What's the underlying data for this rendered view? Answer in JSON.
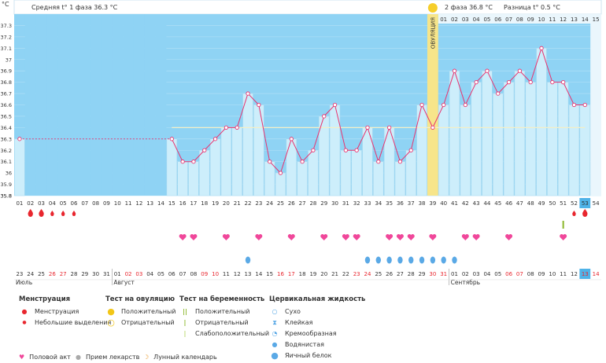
{
  "chart_data": {
    "type": "bar",
    "y_unit_label": "°C",
    "ylim": [
      35.8,
      37.4
    ],
    "yticks": [
      "37.3",
      "37.2",
      "37.1",
      "37",
      "36.9",
      "36.8",
      "36.7",
      "36.6",
      "36.5",
      "36.4",
      "36.3",
      "36.2",
      "36.1",
      "36",
      "35.9",
      "35.8"
    ],
    "header": {
      "phase1_label": "Средняя t° 1 фаза",
      "phase1_value": "36.3 °C",
      "phase2_label": "2 фаза",
      "phase2_value": "36.8 °C",
      "diff_label": "Разница t°",
      "diff_value": "0.5 °C",
      "ovulation_label": "ОВУЛЯЦИЯ"
    },
    "top_day_labels": [
      "01",
      "02",
      "03",
      "04",
      "05",
      "06",
      "07",
      "08",
      "09",
      "10",
      "11",
      "12",
      "13",
      "14",
      "15"
    ],
    "cycle_days": [
      "01",
      "02",
      "03",
      "04",
      "05",
      "06",
      "07",
      "08",
      "09",
      "10",
      "11",
      "12",
      "13",
      "14",
      "15",
      "16",
      "17",
      "18",
      "19",
      "20",
      "21",
      "22",
      "23",
      "24",
      "25",
      "26",
      "27",
      "28",
      "29",
      "30",
      "31",
      "32",
      "33",
      "34",
      "35",
      "36",
      "37",
      "38",
      "39",
      "40",
      "41",
      "42",
      "43",
      "44",
      "45",
      "46",
      "47",
      "48",
      "49",
      "50",
      "51",
      "52",
      "53",
      "54"
    ],
    "temperatures": [
      36.3,
      null,
      null,
      null,
      null,
      null,
      null,
      null,
      null,
      null,
      null,
      null,
      null,
      null,
      36.3,
      36.1,
      36.1,
      36.2,
      36.3,
      36.4,
      36.4,
      36.7,
      36.6,
      36.1,
      36.0,
      36.3,
      36.1,
      36.2,
      36.5,
      36.6,
      36.2,
      36.2,
      36.4,
      36.1,
      36.4,
      36.1,
      36.2,
      36.6,
      36.4,
      36.6,
      36.9,
      36.6,
      36.8,
      36.9,
      36.7,
      36.8,
      36.9,
      36.8,
      37.1,
      36.8,
      36.8,
      36.6,
      36.6,
      null
    ],
    "mean_line_value": 36.4,
    "phase1_avg": 36.3,
    "ovulation_day": "39",
    "today_day": "53",
    "dates": [
      "23",
      "24",
      "25",
      "26",
      "27",
      "28",
      "29",
      "30",
      "31",
      "01",
      "02",
      "03",
      "04",
      "05",
      "06",
      "07",
      "08",
      "09",
      "10",
      "11",
      "12",
      "13",
      "14",
      "15",
      "16",
      "17",
      "18",
      "19",
      "20",
      "21",
      "22",
      "23",
      "24",
      "25",
      "26",
      "27",
      "28",
      "29",
      "30",
      "31",
      "01",
      "02",
      "03",
      "04",
      "05",
      "06",
      "07",
      "08",
      "09",
      "10",
      "11",
      "12",
      "13",
      "14"
    ],
    "weekend_dates_idx": [
      3,
      4,
      10,
      11,
      17,
      18,
      24,
      25,
      31,
      32,
      38,
      39,
      45,
      46,
      52,
      53
    ],
    "months": [
      "Июль",
      "Август",
      "Сентябрь"
    ],
    "menstruation_heavy_days": [
      "02",
      "03",
      "53"
    ],
    "menstruation_light_days": [
      "04",
      "05",
      "06",
      "52"
    ],
    "ovulation_test_days": [
      "51"
    ],
    "intercourse_days": [
      "16",
      "17",
      "20",
      "23",
      "26",
      "29",
      "31",
      "32",
      "35",
      "36",
      "37",
      "39",
      "42",
      "43",
      "46",
      "51"
    ],
    "egg_white_days": [
      "22",
      "33",
      "34",
      "35",
      "36",
      "37",
      "38",
      "39",
      "40",
      "41"
    ]
  },
  "legend": {
    "menstruation": {
      "title": "Менструация",
      "items": [
        "Менструация",
        "Небольшие выделения"
      ]
    },
    "ovulation_test": {
      "title": "Тест на овуляцию",
      "items": [
        "Положительный",
        "Отрицательный"
      ]
    },
    "pregnancy_test": {
      "title": "Тест на беременность",
      "items": [
        "Положительный",
        "Отрицательный",
        "Слабоположительный"
      ]
    },
    "cervical_fluid": {
      "title": "Цервикальная жидкость",
      "items": [
        "Сухо",
        "Клейкая",
        "Кремообразная",
        "Водянистая",
        "Яичный белок"
      ]
    },
    "bottom": [
      "Половой акт",
      "Прием лекарств",
      "Лунный календарь"
    ]
  },
  "colors": {
    "bg_blue": "#8fd3f4",
    "bar_fill": "#cdeefb",
    "line": "#e8336f",
    "ovulation": "#f7e58a",
    "heart": "#f0479a",
    "drop": "#e8262e",
    "drop_blue": "#5aa9e6",
    "today": "#4fb3e8"
  }
}
